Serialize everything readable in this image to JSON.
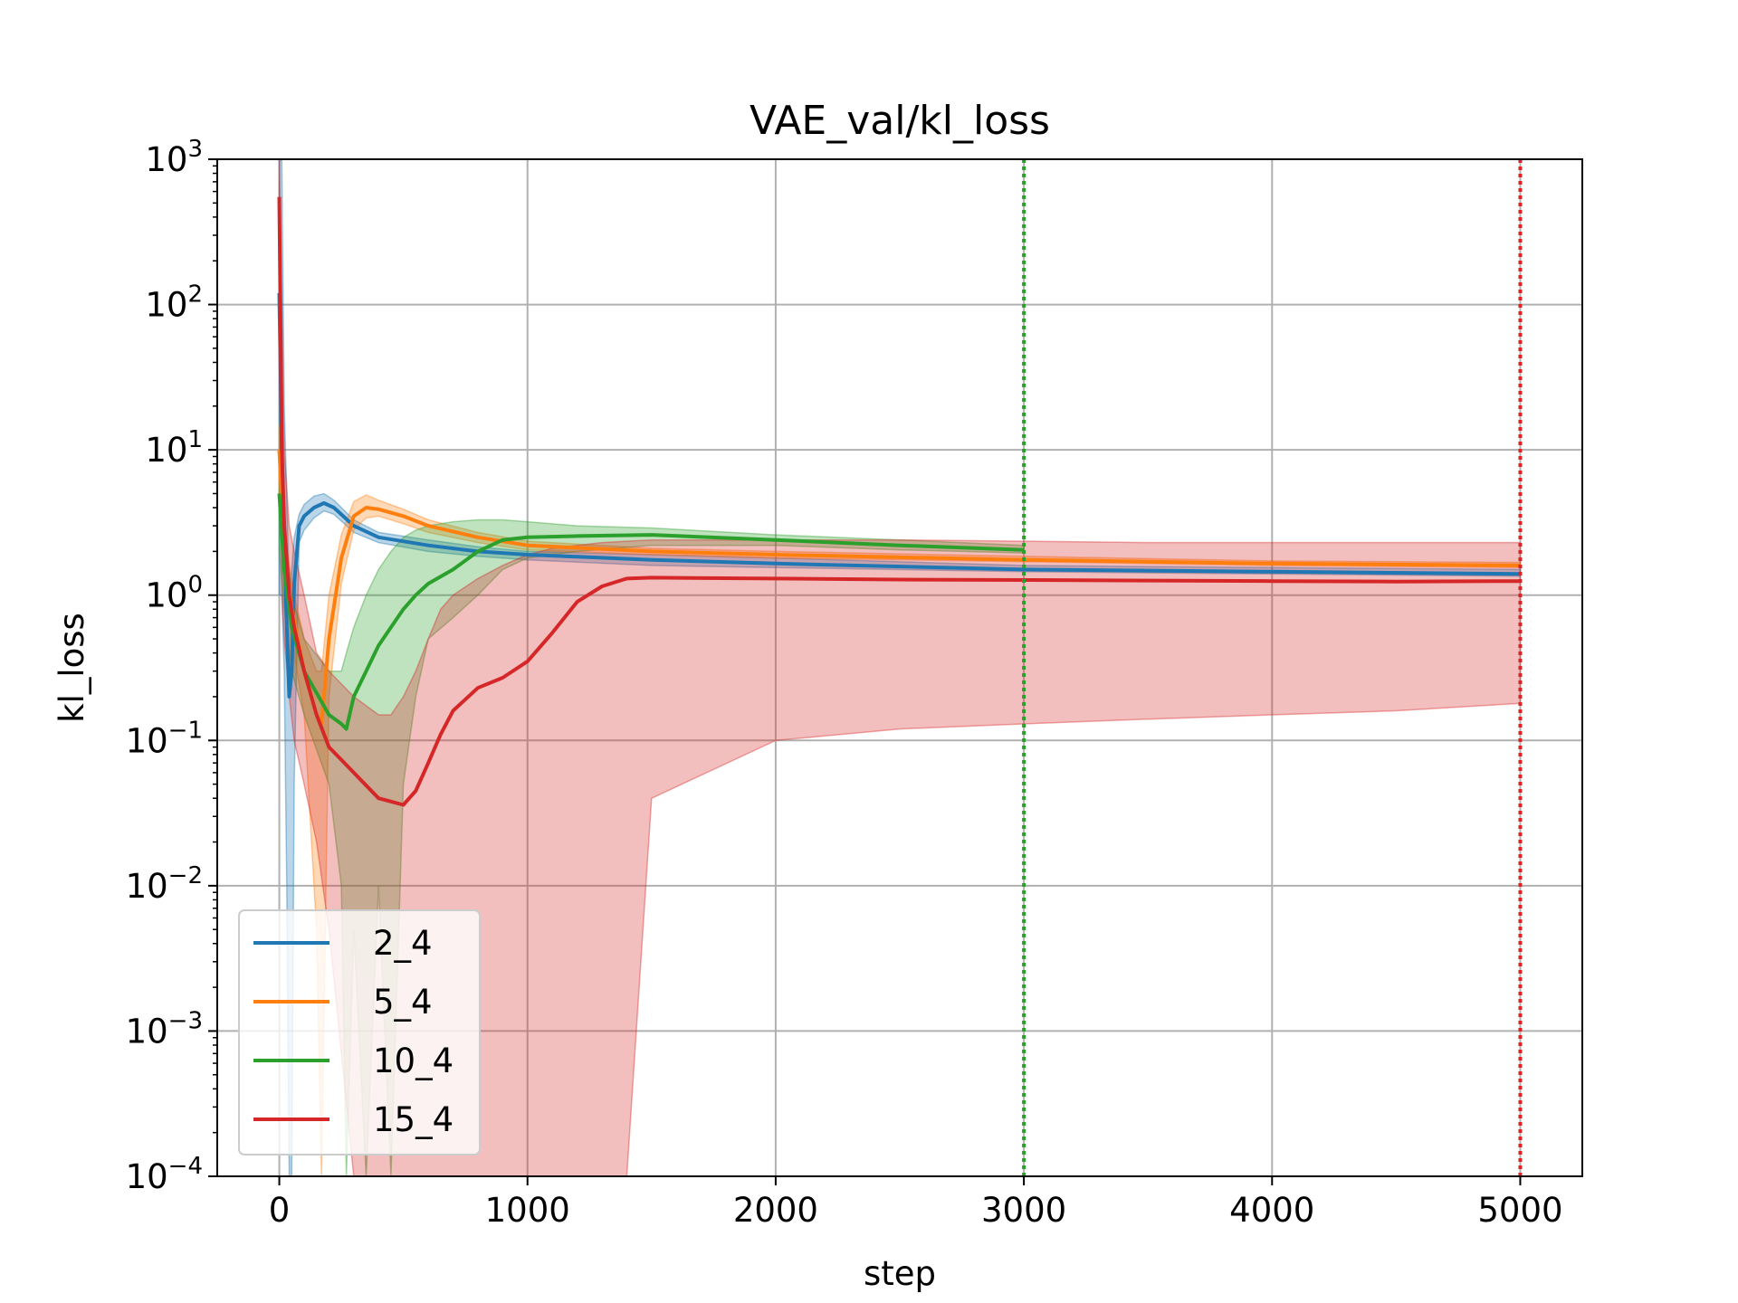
{
  "chart_data": {
    "type": "line",
    "title": "VAE_val/kl_loss",
    "xlabel": "step",
    "ylabel": "kl_loss",
    "xlim": [
      -250,
      5250
    ],
    "ylim": [
      0.0001,
      1000
    ],
    "yscale": "log",
    "xticks": [
      0,
      1000,
      2000,
      3000,
      4000,
      5000
    ],
    "yticks": [
      {
        "base": "10",
        "exp": "3",
        "value": 1000
      },
      {
        "base": "10",
        "exp": "2",
        "value": 100
      },
      {
        "base": "10",
        "exp": "1",
        "value": 10
      },
      {
        "base": "10",
        "exp": "0",
        "value": 1
      },
      {
        "base": "10",
        "exp": "−1",
        "value": 0.1
      },
      {
        "base": "10",
        "exp": "−2",
        "value": 0.01
      },
      {
        "base": "10",
        "exp": "−3",
        "value": 0.001
      },
      {
        "base": "10",
        "exp": "−4",
        "value": 0.0001
      }
    ],
    "grid": true,
    "legend_position": "lower-left",
    "vlines": [
      {
        "x": 3000,
        "color": "#2ca02c",
        "style": "dotted"
      },
      {
        "x": 5000,
        "color": "#d62728",
        "style": "dotted"
      }
    ],
    "series": [
      {
        "name": "2_4",
        "color": "#1f77b4",
        "x": [
          0,
          10,
          20,
          30,
          40,
          50,
          60,
          80,
          100,
          140,
          180,
          220,
          300,
          400,
          600,
          800,
          1000,
          1500,
          2000,
          3000,
          4000,
          5000
        ],
        "y": [
          120,
          10,
          2.5,
          0.6,
          0.2,
          0.3,
          1.2,
          3.0,
          3.5,
          4.0,
          4.3,
          4.0,
          3.0,
          2.5,
          2.2,
          2.0,
          1.9,
          1.75,
          1.65,
          1.5,
          1.45,
          1.4
        ],
        "band_low": [
          1,
          1,
          0.3,
          0.01,
          0.0001,
          0.0001,
          0.05,
          2.3,
          2.8,
          3.4,
          3.8,
          3.6,
          2.7,
          2.3,
          2.0,
          1.85,
          1.75,
          1.6,
          1.55,
          1.45,
          1.4,
          1.35
        ],
        "band_high": [
          1000,
          1000,
          20,
          5,
          1.0,
          1.5,
          2.5,
          3.6,
          4.2,
          4.8,
          5.0,
          4.5,
          3.3,
          2.7,
          2.4,
          2.15,
          2.0,
          1.9,
          1.8,
          1.6,
          1.55,
          1.5
        ]
      },
      {
        "name": "5_4",
        "color": "#ff7f0e",
        "x": [
          0,
          20,
          50,
          100,
          150,
          170,
          200,
          250,
          300,
          350,
          400,
          500,
          600,
          800,
          1000,
          1500,
          2000,
          3000,
          4000,
          5000
        ],
        "y": [
          10,
          2.0,
          0.8,
          0.3,
          0.15,
          0.13,
          0.5,
          1.8,
          3.5,
          4.0,
          3.9,
          3.5,
          3.0,
          2.5,
          2.2,
          2.0,
          1.9,
          1.75,
          1.65,
          1.6
        ],
        "band_low": [
          5,
          1.5,
          0.5,
          0.15,
          0.005,
          0.0001,
          0.2,
          1.2,
          2.8,
          3.4,
          3.5,
          3.1,
          2.7,
          2.3,
          2.05,
          1.9,
          1.8,
          1.7,
          1.6,
          1.55
        ],
        "band_high": [
          15,
          3.0,
          1.2,
          0.5,
          0.3,
          0.3,
          1.0,
          2.6,
          4.4,
          4.9,
          4.5,
          3.9,
          3.3,
          2.7,
          2.35,
          2.1,
          2.0,
          1.85,
          1.72,
          1.68
        ]
      },
      {
        "name": "10_4",
        "color": "#2ca02c",
        "x": [
          0,
          20,
          50,
          100,
          200,
          250,
          270,
          300,
          350,
          400,
          450,
          500,
          550,
          600,
          700,
          800,
          900,
          1000,
          1200,
          1500,
          2000,
          2500,
          3000
        ],
        "y": [
          5,
          1.5,
          0.6,
          0.3,
          0.15,
          0.13,
          0.12,
          0.2,
          0.3,
          0.45,
          0.6,
          0.8,
          1.0,
          1.2,
          1.5,
          2.0,
          2.4,
          2.5,
          2.55,
          2.6,
          2.4,
          2.2,
          2.05
        ],
        "band_low": [
          2,
          0.8,
          0.3,
          0.15,
          0.05,
          0.01,
          0.0001,
          0.005,
          0.0001,
          0.01,
          0.0001,
          0.05,
          0.2,
          0.5,
          0.7,
          1.0,
          1.5,
          1.8,
          2.0,
          2.2,
          2.2,
          2.05,
          1.95
        ],
        "band_high": [
          10,
          3.0,
          1.0,
          0.5,
          0.3,
          0.3,
          0.4,
          0.6,
          1.0,
          1.5,
          2.0,
          2.5,
          2.8,
          3.0,
          3.2,
          3.3,
          3.3,
          3.2,
          3.0,
          2.9,
          2.6,
          2.4,
          2.2
        ]
      },
      {
        "name": "15_4",
        "color": "#d62728",
        "x": [
          0,
          10,
          20,
          40,
          60,
          100,
          150,
          200,
          300,
          400,
          450,
          500,
          550,
          600,
          650,
          700,
          800,
          900,
          1000,
          1100,
          1200,
          1300,
          1400,
          1500,
          2000,
          2500,
          3000,
          3500,
          4000,
          4500,
          5000
        ],
        "y": [
          550,
          10,
          3.0,
          1.0,
          0.6,
          0.3,
          0.15,
          0.09,
          0.06,
          0.04,
          0.038,
          0.036,
          0.045,
          0.07,
          0.11,
          0.16,
          0.23,
          0.27,
          0.35,
          0.55,
          0.9,
          1.15,
          1.3,
          1.32,
          1.3,
          1.28,
          1.27,
          1.26,
          1.25,
          1.24,
          1.25
        ],
        "band_low": [
          100,
          1.0,
          0.5,
          0.2,
          0.1,
          0.05,
          0.02,
          0.005,
          0.0001,
          0.0001,
          0.0001,
          0.0001,
          0.0001,
          0.0001,
          0.0001,
          0.0001,
          0.0001,
          0.0001,
          0.0001,
          0.0001,
          0.0001,
          0.0001,
          0.0001,
          0.04,
          0.1,
          0.12,
          0.13,
          0.14,
          0.15,
          0.16,
          0.18
        ],
        "band_high": [
          1000,
          100,
          10,
          3.0,
          2.0,
          1.0,
          0.4,
          0.3,
          0.2,
          0.15,
          0.15,
          0.2,
          0.3,
          0.5,
          0.8,
          1.0,
          1.3,
          1.6,
          1.9,
          2.1,
          2.2,
          2.3,
          2.35,
          2.4,
          2.4,
          2.4,
          2.35,
          2.3,
          2.3,
          2.3,
          2.3
        ]
      }
    ]
  }
}
